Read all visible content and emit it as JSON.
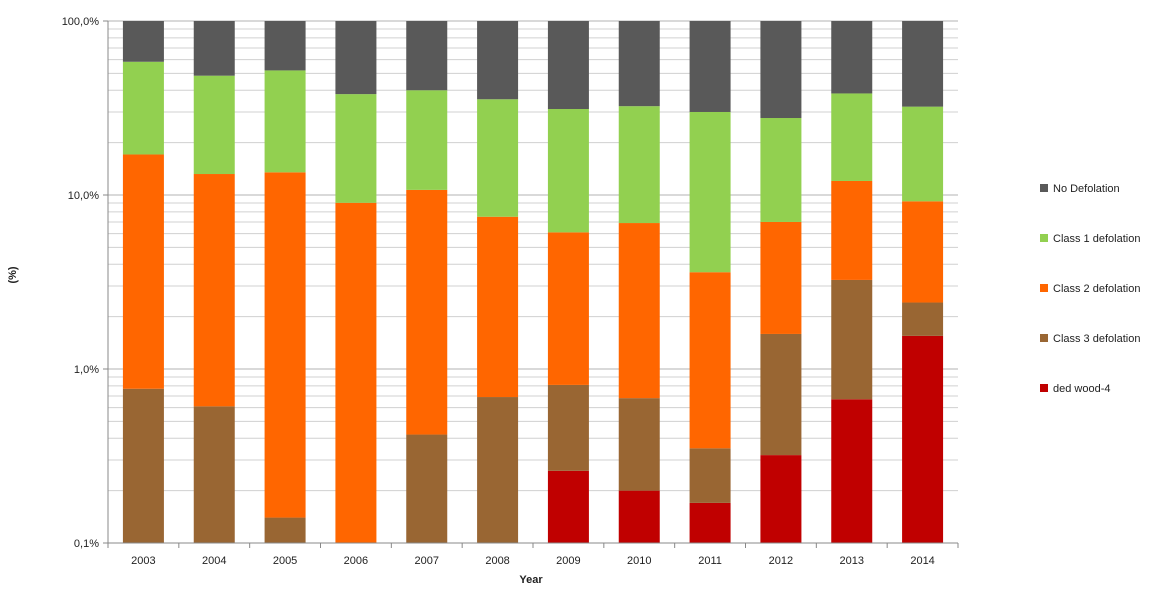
{
  "chart_data": {
    "type": "bar",
    "stacked": true,
    "y_scale": "log",
    "xlabel": "Year",
    "ylabel": "(%)",
    "categories": [
      "2003",
      "2004",
      "2005",
      "2006",
      "2007",
      "2008",
      "2009",
      "2010",
      "2011",
      "2012",
      "2013",
      "2014"
    ],
    "ylim": [
      0.1,
      100
    ],
    "y_ticks": [
      {
        "value": 0.1,
        "label": "0,1%"
      },
      {
        "value": 1,
        "label": "1,0%"
      },
      {
        "value": 10,
        "label": "10,0%"
      },
      {
        "value": 100,
        "label": "100,0%"
      }
    ],
    "series": [
      {
        "name": "ded wood-4",
        "color": "#c00000",
        "values": [
          0,
          0,
          0,
          0,
          0,
          0,
          0.26,
          0.2,
          0.17,
          0.32,
          0.67,
          1.55
        ]
      },
      {
        "name": "Class 3 defolation",
        "color": "#996633",
        "values": [
          0.77,
          0.61,
          0.14,
          0,
          0.42,
          0.69,
          0.55,
          0.48,
          0.18,
          1.27,
          2.58,
          0.86
        ]
      },
      {
        "name": "Class 2 defolation",
        "color": "#ff6600",
        "values": [
          16.33,
          12.59,
          13.36,
          9.02,
          10.28,
          6.81,
          5.29,
          6.22,
          3.25,
          5.41,
          8.79,
          6.79
        ]
      },
      {
        "name": "Class 1 defolation",
        "color": "#92d050",
        "values": [
          41.2,
          35.3,
          38.5,
          28.98,
          29.3,
          28.0,
          25.1,
          25.5,
          26.4,
          20.7,
          26.3,
          23.0
        ]
      },
      {
        "name": "No Defolation",
        "color": "#595959",
        "values": [
          41.7,
          51.5,
          48.0,
          62.0,
          60.0,
          64.5,
          68.8,
          67.6,
          70.0,
          72.3,
          61.7,
          67.8
        ]
      }
    ],
    "legend_position": "right",
    "legend_order": [
      "No Defolation",
      "Class 1 defolation",
      "Class 2 defolation",
      "Class 3 defolation",
      "ded wood-4"
    ],
    "grid": true
  }
}
